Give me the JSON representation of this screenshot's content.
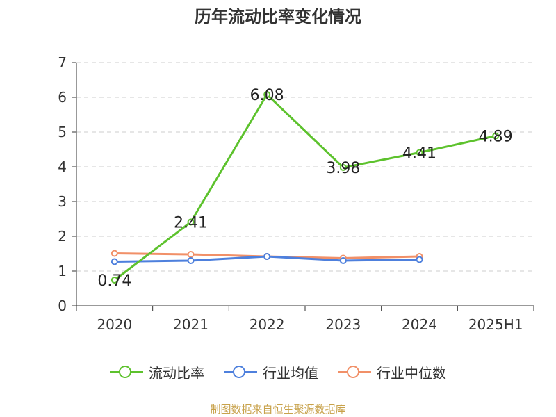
{
  "title": "历年流动比率变化情况",
  "source": "制图数据来自恒生聚源数据库",
  "chart_data": {
    "type": "line",
    "title": "历年流动比率变化情况",
    "categories": [
      "2020",
      "2021",
      "2022",
      "2023",
      "2024",
      "2025H1"
    ],
    "ylim": [
      0,
      7
    ],
    "yticks": [
      0,
      1,
      2,
      3,
      4,
      5,
      6,
      7
    ],
    "grid": true,
    "legend_position": "bottom",
    "series": [
      {
        "name": "流动比率",
        "color": "#5dc22d",
        "values": [
          0.74,
          2.41,
          6.08,
          3.98,
          4.41,
          4.89
        ],
        "labels": [
          "0.74",
          "2.41",
          "6.08",
          "3.98",
          "4.41",
          "4.89"
        ]
      },
      {
        "name": "行业均值",
        "color": "#4e80dd",
        "values": [
          1.27,
          1.3,
          1.42,
          1.3,
          1.33,
          null
        ]
      },
      {
        "name": "行业中位数",
        "color": "#f19068",
        "values": [
          1.51,
          1.48,
          1.42,
          1.37,
          1.42,
          null
        ]
      }
    ]
  }
}
